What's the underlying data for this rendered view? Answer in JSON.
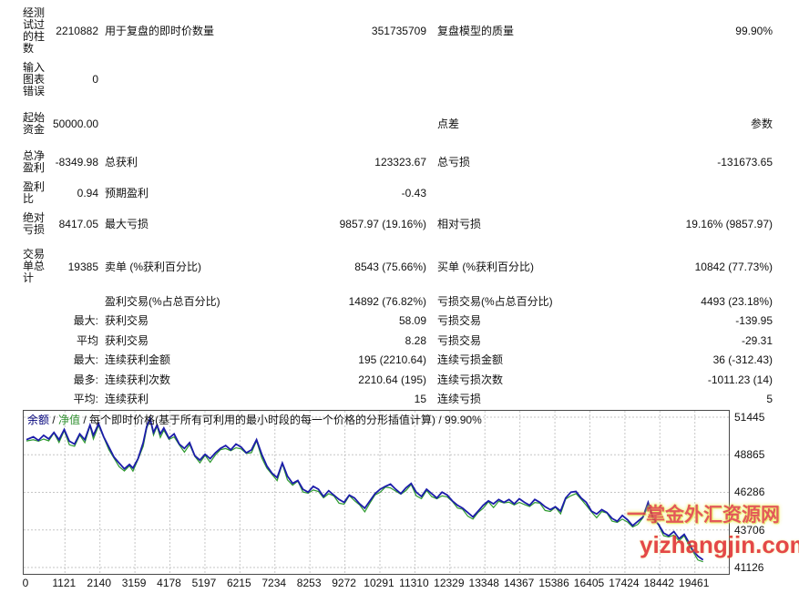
{
  "report": {
    "rows": [
      {
        "c1": "经测试过的柱数",
        "c2": "2210882",
        "c3": "用于复盘的即时价数量",
        "c4": "351735709",
        "c5": "复盘模型的质量",
        "c6": "99.90%"
      },
      {
        "c1": "输入图表错误",
        "c2": "0",
        "c3": "",
        "c4": "",
        "c5": "",
        "c6": ""
      },
      {
        "c1": "起始资金",
        "c2": "50000.00",
        "c3": "",
        "c4": "",
        "c5": "点差",
        "c6": "参数"
      },
      {
        "c1": "总净盈利",
        "c2": "-8349.98",
        "c3": "总获利",
        "c4": "123323.67",
        "c5": "总亏损",
        "c6": "-131673.65"
      },
      {
        "c1": "盈利比",
        "c2": "0.94",
        "c3": "预期盈利",
        "c4": "-0.43",
        "c5": "",
        "c6": ""
      },
      {
        "c1": "绝对亏损",
        "c2": "8417.05",
        "c3": "最大亏损",
        "c4": "9857.97 (19.16%)",
        "c5": "相对亏损",
        "c6": "19.16% (9857.97)"
      },
      {
        "c1": "交易单总计",
        "c2": "19385",
        "c3": "卖单 (%获利百分比)",
        "c4": "8543 (75.66%)",
        "c5": "买单 (%获利百分比)",
        "c6": "10842 (77.73%)"
      },
      {
        "c1": "",
        "c2": "",
        "c3": "盈利交易(%占总百分比)",
        "c4": "14892 (76.82%)",
        "c5": "亏损交易(%占总百分比)",
        "c6": "4493 (23.18%)"
      },
      {
        "c1": "",
        "c2": "最大:",
        "c3": "获利交易",
        "c4": "58.09",
        "c5": "亏损交易",
        "c6": "-139.95"
      },
      {
        "c1": "",
        "c2": "平均",
        "c3": "获利交易",
        "c4": "8.28",
        "c5": "亏损交易",
        "c6": "-29.31"
      },
      {
        "c1": "",
        "c2": "最大:",
        "c3": "连续获利金额",
        "c4": "195 (2210.64)",
        "c5": "连续亏损金额",
        "c6": "36 (-312.43)"
      },
      {
        "c1": "",
        "c2": "最多:",
        "c3": "连续获利次数",
        "c4": "2210.64 (195)",
        "c5": "连续亏损次数",
        "c6": "-1011.23 (14)"
      },
      {
        "c1": "",
        "c2": "平均:",
        "c3": "连续获利",
        "c4": "15",
        "c5": "连续亏损",
        "c6": "5"
      }
    ]
  },
  "chart_data": {
    "type": "line",
    "legend": {
      "balance": "余额",
      "equity": "净值",
      "sep": " / ",
      "rest": "每个即时价格(基于所有可利用的最小时段的每一个价格的分形插值计算) / 99.90%"
    },
    "x_ticks": [
      0,
      1121,
      2140,
      3159,
      4178,
      5197,
      6215,
      7234,
      8253,
      9272,
      10291,
      11310,
      12329,
      13348,
      14367,
      15386,
      16405,
      17424,
      18442,
      19461
    ],
    "y_ticks": [
      41126,
      43706,
      46286,
      48865,
      51445
    ],
    "xlim": [
      -80,
      20450
    ],
    "ylim": [
      40690,
      51880
    ],
    "grid": true,
    "x": [
      0,
      200,
      350,
      500,
      650,
      800,
      950,
      1100,
      1250,
      1400,
      1550,
      1700,
      1850,
      1950,
      2100,
      2250,
      2400,
      2550,
      2700,
      2850,
      3000,
      3100,
      3250,
      3400,
      3500,
      3600,
      3700,
      3800,
      3900,
      4000,
      4150,
      4300,
      4450,
      4600,
      4750,
      4900,
      5050,
      5200,
      5350,
      5500,
      5650,
      5800,
      5950,
      6100,
      6250,
      6400,
      6550,
      6700,
      6850,
      7000,
      7150,
      7300,
      7450,
      7600,
      7750,
      7900,
      8050,
      8200,
      8350,
      8500,
      8650,
      8800,
      8950,
      9100,
      9250,
      9400,
      9550,
      9700,
      9850,
      10000,
      10150,
      10300,
      10450,
      10600,
      10750,
      10900,
      11050,
      11200,
      11350,
      11500,
      11650,
      11800,
      11950,
      12100,
      12250,
      12400,
      12550,
      12700,
      12850,
      13000,
      13150,
      13300,
      13450,
      13600,
      13750,
      13900,
      14050,
      14200,
      14350,
      14500,
      14650,
      14800,
      14950,
      15100,
      15250,
      15400,
      15550,
      15700,
      15850,
      16000,
      16150,
      16300,
      16450,
      16600,
      16750,
      16900,
      17050,
      17200,
      17350,
      17500,
      17650,
      17800,
      17950,
      18100,
      18250,
      18400,
      18550,
      18700,
      18850,
      19000,
      19150,
      19300,
      19400,
      19550,
      19700
    ],
    "series": [
      {
        "name": "余额",
        "color": "#1c1caa",
        "values": [
          49900,
          50100,
          49850,
          50200,
          49950,
          50400,
          49900,
          50600,
          49800,
          49600,
          50300,
          49900,
          50900,
          50200,
          51000,
          50100,
          49400,
          48700,
          48300,
          47900,
          48200,
          47950,
          48600,
          49700,
          50800,
          51350,
          50400,
          50900,
          50300,
          50700,
          50000,
          50300,
          49600,
          49300,
          49700,
          48800,
          48500,
          48900,
          48600,
          49000,
          49300,
          49500,
          49200,
          49600,
          49400,
          49000,
          49200,
          49900,
          48900,
          48100,
          47600,
          47300,
          48300,
          47400,
          46900,
          47100,
          46500,
          46300,
          46700,
          46500,
          46000,
          46400,
          46100,
          45800,
          45600,
          46100,
          45900,
          45500,
          45200,
          45700,
          46200,
          46500,
          46700,
          46850,
          46500,
          46200,
          46600,
          46900,
          46300,
          46000,
          46500,
          46200,
          45900,
          46300,
          46100,
          45700,
          45400,
          45200,
          44900,
          44600,
          45000,
          45400,
          45700,
          45500,
          45800,
          45600,
          45800,
          45500,
          45850,
          45600,
          45400,
          45800,
          45600,
          45300,
          45100,
          45300,
          45000,
          45900,
          46300,
          46350,
          45900,
          45600,
          45000,
          44800,
          45100,
          44900,
          44500,
          44300,
          44700,
          44400,
          44000,
          44300,
          44600,
          45600,
          44500,
          44100,
          43500,
          43300,
          43600,
          43100,
          43400,
          42800,
          42300,
          41900,
          41650
        ]
      },
      {
        "name": "净值",
        "color": "#2f9b2f",
        "offsets_from_balance": [
          90,
          210,
          60,
          260,
          130,
          40,
          190,
          80,
          250,
          150
        ]
      }
    ]
  },
  "watermark": {
    "line1": "一掌金外汇资源网",
    "line2": "yizhangjin.com"
  }
}
